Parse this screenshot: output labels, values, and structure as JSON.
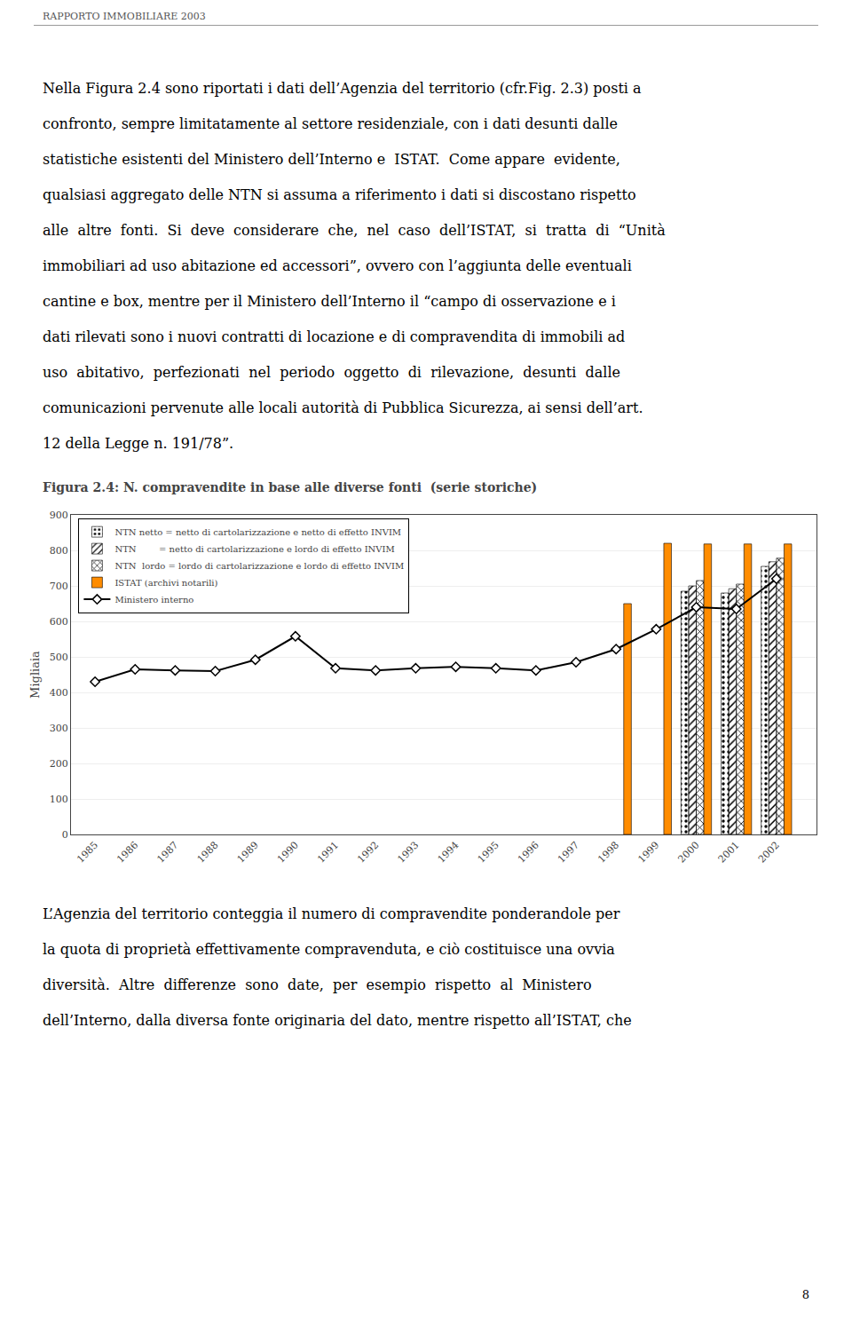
{
  "page_title": "RAPPORTO IMMOBILIARE 2003",
  "body_lines_1": [
    "Nella Figura 2.4 sono riportati i dati dell’Agenzia del territorio (cfr.Fig. 2.3) posti a",
    "confronto, sempre limitatamente al settore residenziale, con i dati desunti dalle",
    "statistiche esistenti del Ministero dell’Interno e  ISTAT.  Come appare  evidente,",
    "qualsiasi aggregato delle NTN si assuma a riferimento i dati si discostano rispetto",
    "alle  altre  fonti.  Si  deve  considerare  che,  nel  caso  dell’ISTAT,  si  tratta  di  “Unità",
    "immobiliari ad uso abitazione ed accessori”, ovvero con l’aggiunta delle eventuali",
    "cantine e box, mentre per il Ministero dell’Interno il “campo di osservazione e i",
    "dati rilevati sono i nuovi contratti di locazione e di compravendita di immobili ad",
    "uso  abitativo,  perfezionati  nel  periodo  oggetto  di  rilevazione,  desunti  dalle",
    "comunicazioni pervenute alle locali autorità di Pubblica Sicurezza, ai sensi dell’art.",
    "12 della Legge n. 191/78”."
  ],
  "body_lines_2": [
    "L’Agenzia del territorio conteggia il numero di compravendite ponderandole per",
    "la quota di proprietà effettivamente compravenduta, e ciò costituisce una ovvia",
    "diversità.  Altre  differenze  sono  date,  per  esempio  rispetto  al  Ministero",
    "dell’Interno, dalla diversa fonte originaria del dato, mentre rispetto all’ISTAT, che"
  ],
  "page_number": "8",
  "chart_data": {
    "type": "bar",
    "title": "Figura 2.4: N. compravendite in base alle diverse fonti  (serie storiche)",
    "ylabel": "Migliaia",
    "x": [
      1985,
      1986,
      1987,
      1988,
      1989,
      1990,
      1991,
      1992,
      1993,
      1994,
      1995,
      1996,
      1997,
      1998,
      1999,
      2000,
      2001,
      2002
    ],
    "xlim": [
      1984.4,
      2003.0
    ],
    "xticks": [
      1985,
      1986,
      1987,
      1988,
      1989,
      1990,
      1991,
      1992,
      1993,
      1994,
      1995,
      1996,
      1997,
      1998,
      1999,
      2000,
      2001,
      2002
    ],
    "ylim": [
      0,
      900
    ],
    "yticks": [
      0,
      100,
      200,
      300,
      400,
      500,
      600,
      700,
      800,
      900
    ],
    "grid": true,
    "legend": "upper left",
    "series": [
      {
        "name": "NTN netto = netto di cartolarizzazione e netto di effetto INVIM",
        "type": "bar",
        "color": "#c8c8c8",
        "values": [
          null,
          null,
          null,
          null,
          null,
          null,
          null,
          null,
          null,
          null,
          null,
          null,
          null,
          null,
          null,
          685,
          680,
          755
        ]
      },
      {
        "name": "NTN        = netto di cartolarizzazione e lordo di effetto INVIM",
        "type": "bar",
        "color": "#ffffff",
        "values": [
          null,
          null,
          null,
          null,
          null,
          null,
          null,
          null,
          null,
          null,
          null,
          null,
          null,
          null,
          null,
          700,
          692,
          768
        ]
      },
      {
        "name": "NTN  lordo = lordo di cartolarizzazione e lordo di effetto INVIM",
        "type": "bar",
        "color": "#ffffff",
        "values": [
          null,
          null,
          null,
          null,
          null,
          null,
          null,
          null,
          null,
          null,
          null,
          null,
          null,
          null,
          null,
          715,
          705,
          778
        ]
      },
      {
        "name": "ISTAT (archivi notarili)",
        "type": "bar",
        "color": "#FF8C00",
        "values": [
          null,
          null,
          null,
          null,
          null,
          null,
          null,
          null,
          null,
          null,
          null,
          null,
          null,
          650,
          820,
          818,
          818,
          818
        ]
      },
      {
        "name": "Ministero interno",
        "type": "line",
        "color": "#000000",
        "marker": "diamond",
        "values": [
          430,
          465,
          462,
          460,
          492,
          558,
          468,
          462,
          468,
          472,
          468,
          462,
          485,
          522,
          578,
          640,
          635,
          720
        ]
      }
    ]
  }
}
